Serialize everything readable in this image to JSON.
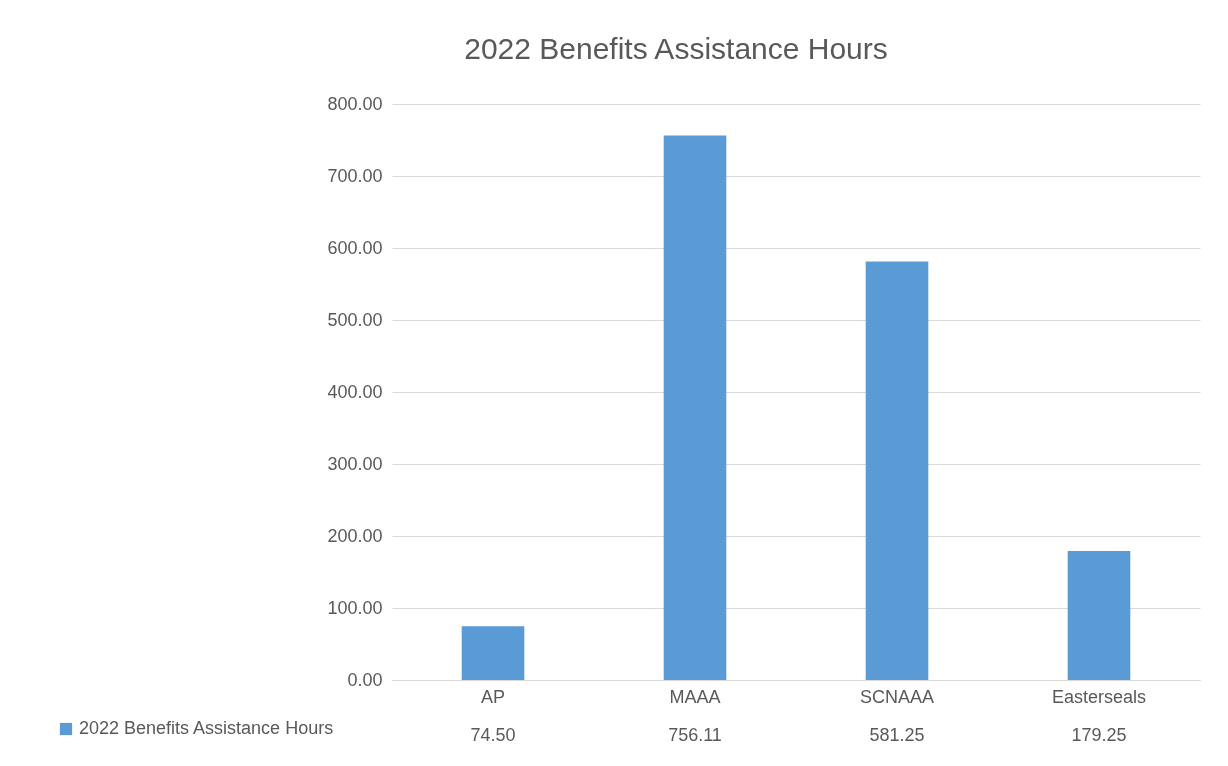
{
  "chart_data": {
    "type": "bar",
    "title": "2022 Benefits Assistance Hours",
    "categories": [
      "AP",
      "MAAA",
      "SCNAAA",
      "Easterseals"
    ],
    "series": [
      {
        "name": "2022 Benefits Assistance Hours",
        "color": "#5b9bd5",
        "values": [
          74.5,
          756.11,
          581.25,
          179.25
        ],
        "value_labels": [
          "74.50",
          "756.11",
          "581.25",
          "179.25"
        ]
      }
    ],
    "ylim": [
      0,
      800
    ],
    "yticks": [
      {
        "value": 0,
        "label": "0.00"
      },
      {
        "value": 100,
        "label": "100.00"
      },
      {
        "value": 200,
        "label": "200.00"
      },
      {
        "value": 300,
        "label": "300.00"
      },
      {
        "value": 400,
        "label": "400.00"
      },
      {
        "value": 500,
        "label": "500.00"
      },
      {
        "value": 600,
        "label": "600.00"
      },
      {
        "value": 700,
        "label": "700.00"
      },
      {
        "value": 800,
        "label": "800.00"
      }
    ],
    "grid": "y",
    "legend": "bottom"
  }
}
